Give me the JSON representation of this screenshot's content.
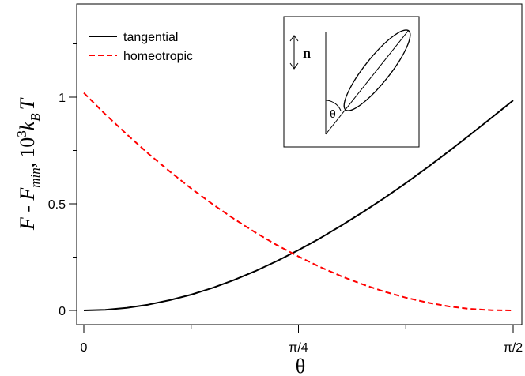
{
  "chart_data": {
    "type": "line",
    "xlabel": "θ",
    "ylabel": {
      "main": "F - F",
      "sub": "min",
      "sep": ",",
      "factor": "10",
      "exp": "3",
      "k": "k",
      "ksub": "B",
      "T": "T"
    },
    "xlim": [
      0,
      1.5708
    ],
    "ylim": [
      -0.05,
      1.38
    ],
    "xticks": [
      {
        "value": 0,
        "label": "0"
      },
      {
        "value": 0.7854,
        "label": "π/4"
      },
      {
        "value": 1.5708,
        "label": "π/2"
      }
    ],
    "xminor": [
      0.3927,
      1.1781
    ],
    "yticks": [
      {
        "value": 0,
        "label": "0"
      },
      {
        "value": 0.5,
        "label": "0.5"
      },
      {
        "value": 1,
        "label": "1"
      }
    ],
    "yminor": [
      0.25,
      0.75,
      1.25
    ],
    "grid": false,
    "legend_position": "top-left",
    "series": [
      {
        "name": "tangential",
        "color": "#000000",
        "dash": "solid",
        "x": [
          0,
          0.0785,
          0.1571,
          0.2356,
          0.3142,
          0.3927,
          0.4712,
          0.5498,
          0.6283,
          0.7069,
          0.7854,
          0.8639,
          0.9425,
          1.021,
          1.0996,
          1.1781,
          1.2566,
          1.3352,
          1.4137,
          1.4923,
          1.5708
        ],
        "y": [
          0,
          0.003,
          0.012,
          0.027,
          0.048,
          0.074,
          0.106,
          0.143,
          0.185,
          0.232,
          0.283,
          0.338,
          0.398,
          0.461,
          0.527,
          0.597,
          0.67,
          0.746,
          0.824,
          0.904,
          0.985
        ]
      },
      {
        "name": "homeotropic",
        "color": "#ff0000",
        "dash": "dashed",
        "x": [
          0,
          0.0785,
          0.1571,
          0.2356,
          0.3142,
          0.3927,
          0.4712,
          0.5498,
          0.6283,
          0.7069,
          0.7854,
          0.8639,
          0.9425,
          1.021,
          1.0996,
          1.1781,
          1.2566,
          1.3352,
          1.4137,
          1.4923,
          1.5708
        ],
        "y": [
          1.02,
          0.92,
          0.826,
          0.736,
          0.652,
          0.572,
          0.498,
          0.429,
          0.365,
          0.306,
          0.253,
          0.204,
          0.16,
          0.122,
          0.088,
          0.06,
          0.037,
          0.019,
          0.007,
          0.001,
          0
        ]
      }
    ],
    "inset": {
      "vector_label": "n",
      "angle_label": "θ"
    }
  }
}
